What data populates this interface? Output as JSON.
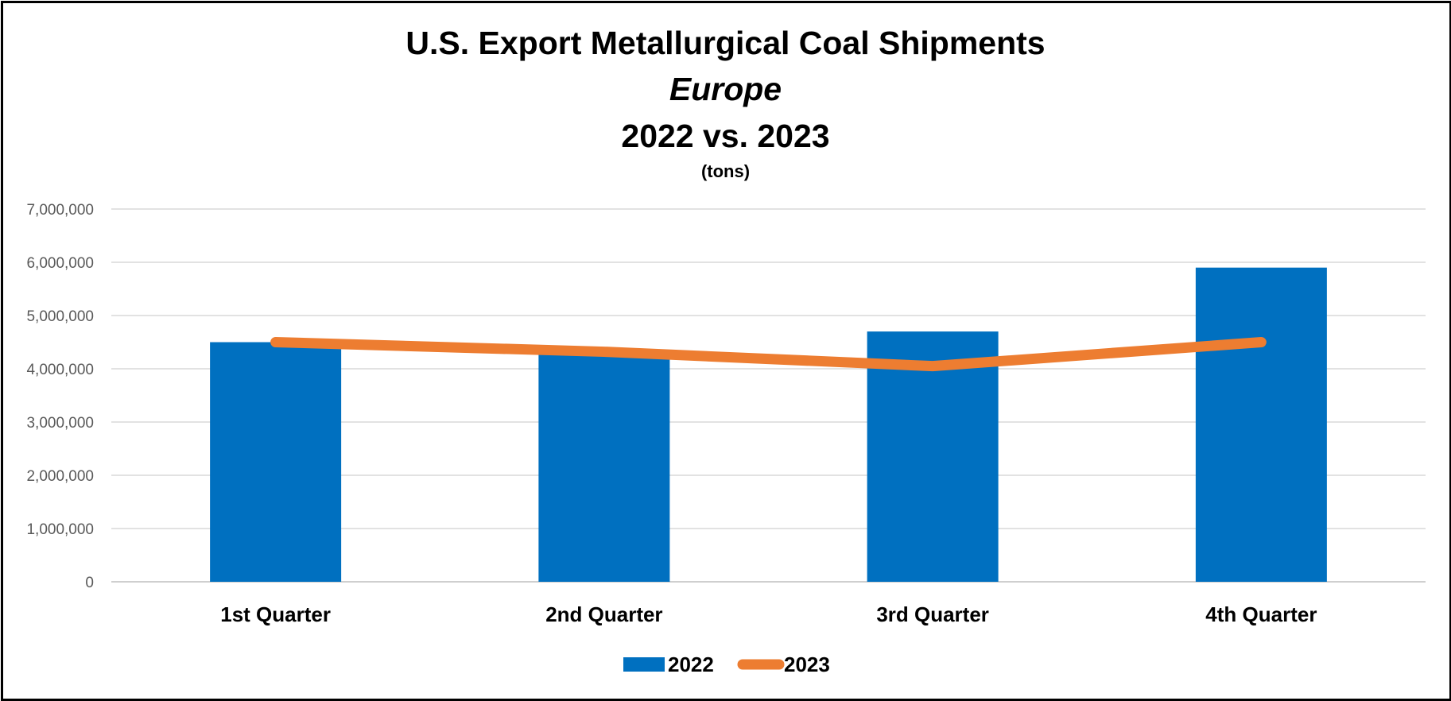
{
  "chart_data": {
    "type": "bar",
    "title": "U.S. Export Metallurgical Coal Shipments",
    "subtitle": "Europe",
    "title_line3": "2022 vs. 2023",
    "units": "(tons)",
    "categories": [
      "1st Quarter",
      "2nd Quarter",
      "3rd Quarter",
      "4th Quarter"
    ],
    "series": [
      {
        "name": "2022",
        "type": "bar",
        "color": "#0070C0",
        "values": [
          4500000,
          4300000,
          4700000,
          5900000
        ]
      },
      {
        "name": "2023",
        "type": "line",
        "color": "#ED7D31",
        "values": [
          4500000,
          4320000,
          4050000,
          4500000
        ]
      }
    ],
    "ylim": [
      0,
      7000000
    ],
    "yticks": [
      0,
      1000000,
      2000000,
      3000000,
      4000000,
      5000000,
      6000000,
      7000000
    ],
    "ytick_labels": [
      "0",
      "1,000,000",
      "2,000,000",
      "3,000,000",
      "4,000,000",
      "5,000,000",
      "6,000,000",
      "7,000,000"
    ],
    "grid": true,
    "legend": "bottom"
  }
}
